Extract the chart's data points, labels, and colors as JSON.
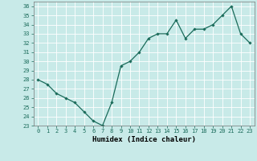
{
  "x": [
    0,
    1,
    2,
    3,
    4,
    5,
    6,
    7,
    8,
    9,
    10,
    11,
    12,
    13,
    14,
    15,
    16,
    17,
    18,
    19,
    20,
    21,
    22,
    23
  ],
  "y": [
    28,
    27.5,
    26.5,
    26,
    25.5,
    24.5,
    23.5,
    23,
    25.5,
    29.5,
    30,
    31,
    32.5,
    33,
    33,
    34.5,
    32.5,
    33.5,
    33.5,
    34,
    35,
    36,
    33,
    32
  ],
  "xlabel": "Humidex (Indice chaleur)",
  "ylim": [
    23,
    36.5
  ],
  "xlim": [
    -0.5,
    23.5
  ],
  "yticks": [
    23,
    24,
    25,
    26,
    27,
    28,
    29,
    30,
    31,
    32,
    33,
    34,
    35,
    36
  ],
  "xticks": [
    0,
    1,
    2,
    3,
    4,
    5,
    6,
    7,
    8,
    9,
    10,
    11,
    12,
    13,
    14,
    15,
    16,
    17,
    18,
    19,
    20,
    21,
    22,
    23
  ],
  "line_color": "#1a6b5a",
  "marker": "D",
  "marker_size": 1.8,
  "bg_color": "#c8eae8",
  "grid_color": "#ffffff",
  "tick_label_fontsize": 5.0,
  "xlabel_fontsize": 6.5,
  "line_width": 0.9
}
